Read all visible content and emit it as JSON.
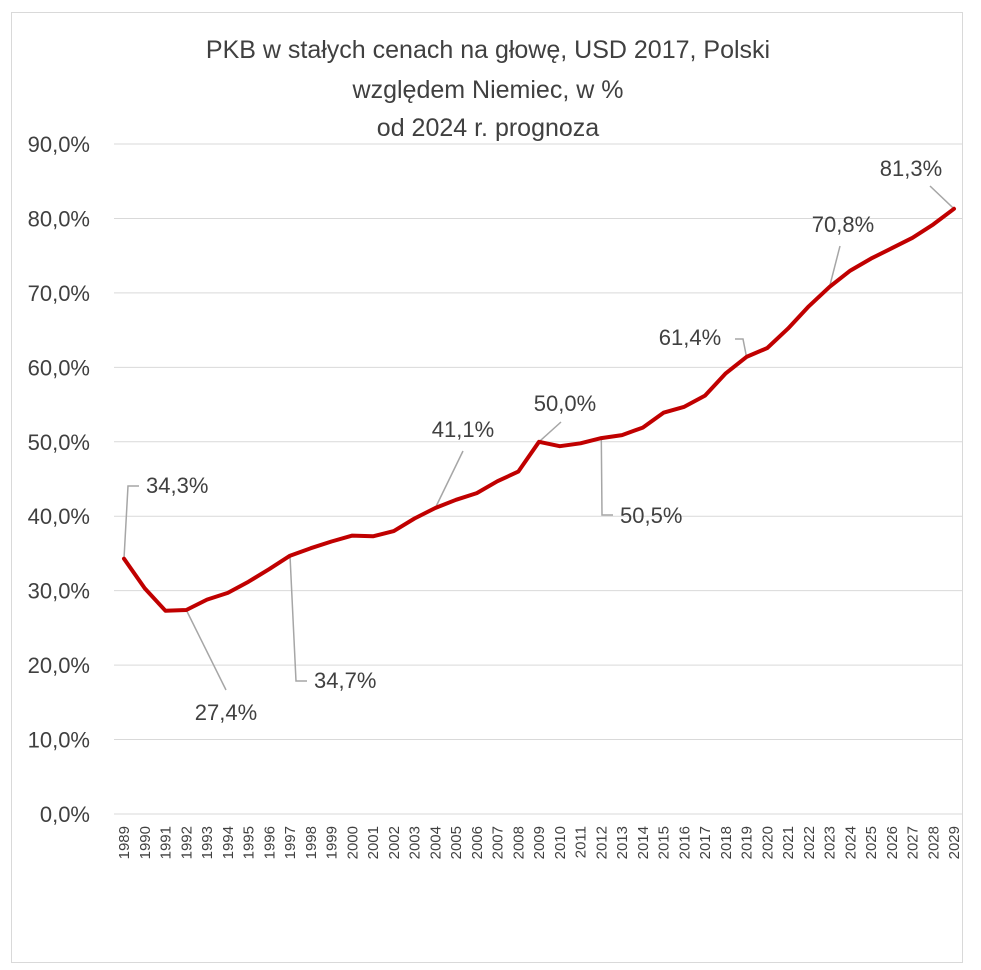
{
  "chart_data": {
    "type": "line",
    "title_lines": [
      "PKB w stałych cenach na głowę, USD 2017, Polski",
      "względem Niemiec, w %",
      "od 2024 r. prognoza"
    ],
    "xlabel": "",
    "ylabel": "",
    "ylim": [
      0,
      90
    ],
    "ytick_labels": [
      "0,0%",
      "10,0%",
      "20,0%",
      "30,0%",
      "40,0%",
      "50,0%",
      "60,0%",
      "70,0%",
      "80,0%",
      "90,0%"
    ],
    "grid": true,
    "legend": "none",
    "categories": [
      "1989",
      "1990",
      "1991",
      "1992",
      "1993",
      "1994",
      "1995",
      "1996",
      "1997",
      "1998",
      "1999",
      "2000",
      "2001",
      "2002",
      "2003",
      "2004",
      "2005",
      "2006",
      "2007",
      "2008",
      "2009",
      "2010",
      "2011",
      "2012",
      "2013",
      "2014",
      "2015",
      "2016",
      "2017",
      "2018",
      "2019",
      "2020",
      "2021",
      "2022",
      "2023",
      "2024",
      "2025",
      "2026",
      "2027",
      "2028",
      "2029"
    ],
    "series": [
      {
        "color": "#c00000",
        "values": [
          34.3,
          30.3,
          27.3,
          27.4,
          28.8,
          29.7,
          31.2,
          32.9,
          34.7,
          35.7,
          36.6,
          37.4,
          37.3,
          38.0,
          39.7,
          41.1,
          42.2,
          43.1,
          44.7,
          46.0,
          50.0,
          49.4,
          49.8,
          50.5,
          50.9,
          51.9,
          53.9,
          54.7,
          56.2,
          59.2,
          61.4,
          62.6,
          65.2,
          68.2,
          70.8,
          73.0,
          74.6,
          76.0,
          77.4,
          79.2,
          81.3
        ]
      }
    ],
    "data_labels": [
      {
        "category": "1989",
        "text": "34,3%"
      },
      {
        "category": "1992",
        "text": "27,4%"
      },
      {
        "category": "1997",
        "text": "34,7%"
      },
      {
        "category": "2004",
        "text": "41,1%"
      },
      {
        "category": "2009",
        "text": "50,0%"
      },
      {
        "category": "2012",
        "text": "50,5%"
      },
      {
        "category": "2019",
        "text": "61,4%"
      },
      {
        "category": "2023",
        "text": "70,8%"
      },
      {
        "category": "2029",
        "text": "81,3%"
      }
    ]
  }
}
